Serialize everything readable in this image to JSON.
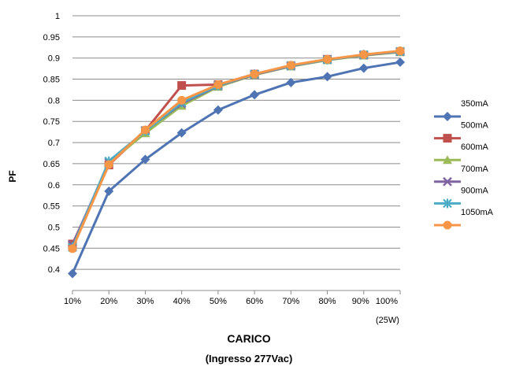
{
  "chart_data": {
    "type": "line",
    "xlabel": "CARICO",
    "subtitle": "(Ingresso 277Vac)",
    "x_unit_note": "(25W)",
    "ylabel": "PF",
    "categories": [
      "10%",
      "20%",
      "30%",
      "40%",
      "50%",
      "60%",
      "70%",
      "80%",
      "90%",
      "100%"
    ],
    "ylim": [
      0.35,
      1.0
    ],
    "yticks": [
      "0.4",
      "0.45",
      "0.5",
      "0.55",
      "0.6",
      "0.65",
      "0.7",
      "0.75",
      "0.8",
      "0.85",
      "0.9",
      "0.95",
      "1"
    ],
    "grid": true,
    "legend_position": "right",
    "series": [
      {
        "name": "350mA",
        "color": "#4f74b3",
        "marker": "diamond",
        "values": [
          0.39,
          0.585,
          0.66,
          0.723,
          0.777,
          0.813,
          0.842,
          0.856,
          0.876,
          0.89
        ]
      },
      {
        "name": "500mA",
        "color": "#c0504d",
        "marker": "square",
        "values": [
          0.46,
          0.647,
          0.728,
          0.835,
          0.837,
          0.862,
          0.882,
          0.897,
          0.907,
          0.915
        ]
      },
      {
        "name": "600mA",
        "color": "#9bbb59",
        "marker": "triangle",
        "values": [
          0.455,
          0.652,
          0.722,
          0.787,
          0.832,
          0.86,
          0.88,
          0.895,
          0.906,
          0.914
        ]
      },
      {
        "name": "700mA",
        "color": "#8064a2",
        "marker": "x",
        "values": [
          0.458,
          0.653,
          0.728,
          0.792,
          0.834,
          0.861,
          0.881,
          0.896,
          0.907,
          0.915
        ]
      },
      {
        "name": "900mA",
        "color": "#4bacc6",
        "marker": "star",
        "values": [
          0.452,
          0.656,
          0.727,
          0.795,
          0.835,
          0.862,
          0.882,
          0.896,
          0.908,
          0.916
        ]
      },
      {
        "name": "1050mA",
        "color": "#f79646",
        "marker": "circle",
        "values": [
          0.449,
          0.648,
          0.73,
          0.8,
          0.837,
          0.862,
          0.883,
          0.897,
          0.908,
          0.917
        ]
      }
    ]
  }
}
